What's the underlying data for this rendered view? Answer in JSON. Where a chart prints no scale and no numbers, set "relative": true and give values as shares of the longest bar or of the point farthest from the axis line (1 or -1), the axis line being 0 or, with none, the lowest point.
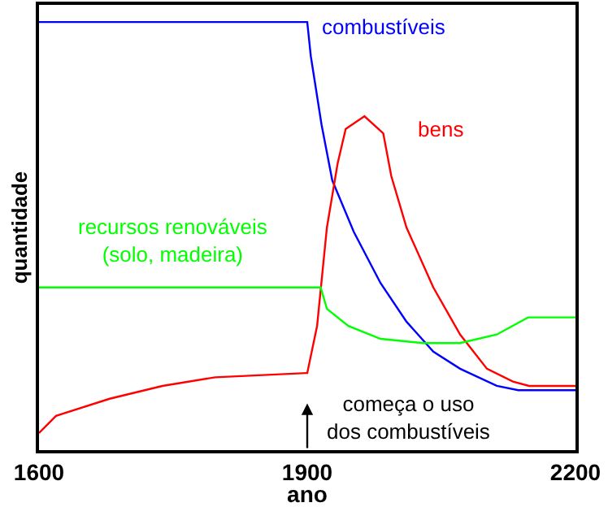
{
  "chart_data": {
    "type": "line",
    "relative": true,
    "xlabel": "ano",
    "ylabel": "quantidade",
    "xlim": [
      1600,
      2200
    ],
    "xticks": [
      1600,
      1900,
      2200
    ],
    "grid": false,
    "legend": false,
    "marker": "none",
    "line_style": "solid",
    "series": [
      {
        "name": "combustíveis",
        "color": "#0000ff",
        "x": [
          1600,
          1900,
          1904,
          1916,
          1928,
          1952,
          1982,
          2011,
          2041,
          2071,
          2112,
          2136,
          2200
        ],
        "values": [
          1,
          1,
          0.92,
          0.76,
          0.63,
          0.51,
          0.39,
          0.3,
          0.23,
          0.19,
          0.15,
          0.14,
          0.14
        ]
      },
      {
        "name": "bens",
        "color": "#ff0000",
        "x": [
          1600,
          1619,
          1679,
          1738,
          1797,
          1899,
          1900,
          1911,
          1922,
          1934,
          1943,
          1964,
          1985,
          1994,
          2011,
          2041,
          2071,
          2101,
          2130,
          2148,
          2200
        ],
        "values": [
          0.04,
          0.08,
          0.12,
          0.15,
          0.17,
          0.18,
          0.18,
          0.29,
          0.52,
          0.67,
          0.75,
          0.78,
          0.74,
          0.64,
          0.52,
          0.38,
          0.27,
          0.19,
          0.16,
          0.15,
          0.15
        ]
      },
      {
        "name": "recursos renováveis\n(solo, madeira)",
        "color": "#00ff00",
        "x": [
          1600,
          1915,
          1922,
          1946,
          1982,
          2029,
          2071,
          2112,
          2147,
          2200
        ],
        "values": [
          0.38,
          0.38,
          0.33,
          0.29,
          0.26,
          0.25,
          0.25,
          0.27,
          0.31,
          0.31
        ]
      }
    ],
    "annotations": [
      "começa o uso\ndos combustíveis"
    ]
  }
}
